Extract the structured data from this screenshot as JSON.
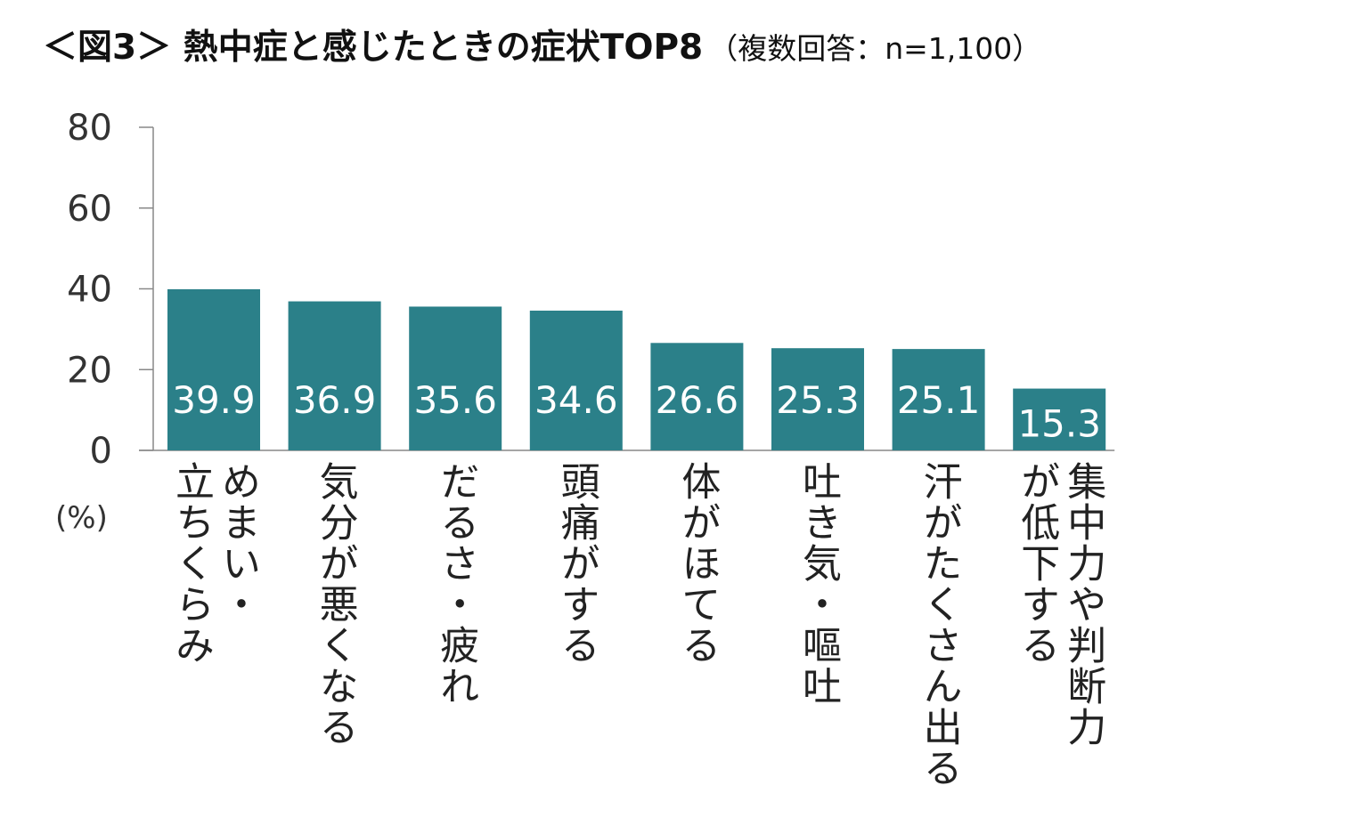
{
  "title": {
    "main": "＜図3＞ 熱中症と感じたときの症状TOP8",
    "sub": "（複数回答：n=1,100）"
  },
  "colors": {
    "bar": "#2b8089",
    "axis": "#888888",
    "value_text": "#ffffff"
  },
  "chart_data": {
    "type": "bar",
    "title": "＜図3＞ 熱中症と感じたときの症状TOP8（複数回答：n=1,100）",
    "ylabel": "(%)",
    "xlabel": "",
    "ylim": [
      0,
      80
    ],
    "yticks": [
      0,
      20,
      40,
      60,
      80
    ],
    "grid": false,
    "categories": [
      [
        "めまい・",
        "立ちくらみ"
      ],
      [
        "気分が悪くなる"
      ],
      [
        "だるさ・疲れ"
      ],
      [
        "頭痛がする"
      ],
      [
        "体がほてる"
      ],
      [
        "吐き気・嘔吐"
      ],
      [
        "汗がたくさん出る"
      ],
      [
        "集中力や判断力",
        "が低下する"
      ]
    ],
    "values": [
      39.9,
      36.9,
      35.6,
      34.6,
      26.6,
      25.3,
      25.1,
      15.3
    ]
  }
}
